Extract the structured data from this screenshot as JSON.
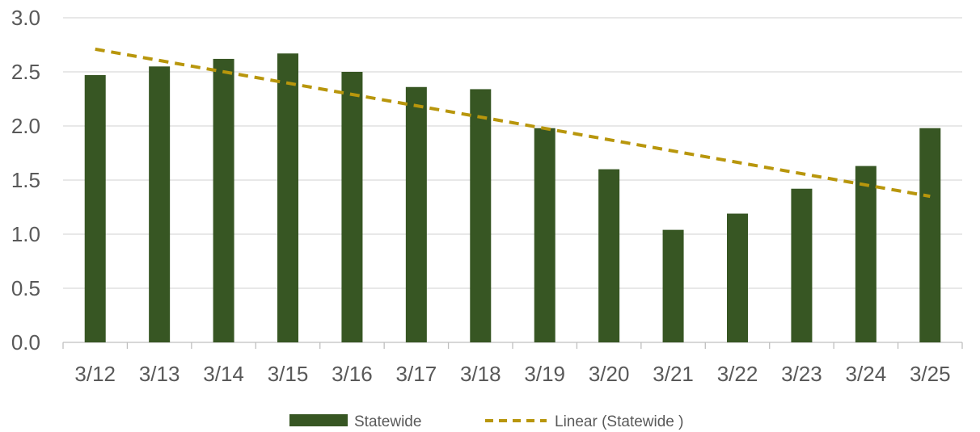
{
  "chart_data": {
    "type": "bar",
    "categories": [
      "3/12",
      "3/13",
      "3/14",
      "3/15",
      "3/16",
      "3/17",
      "3/18",
      "3/19",
      "3/20",
      "3/21",
      "3/22",
      "3/23",
      "3/24",
      "3/25"
    ],
    "series": [
      {
        "name": "Statewide",
        "values": [
          2.47,
          2.55,
          2.62,
          2.67,
          2.5,
          2.36,
          2.34,
          1.98,
          1.6,
          1.04,
          1.19,
          1.42,
          1.63,
          1.98
        ]
      }
    ],
    "trendline": {
      "name": "Linear (Statewide )",
      "type": "linear",
      "start": 2.71,
      "end": 1.35
    },
    "title": "",
    "xlabel": "",
    "ylabel": "",
    "ylim": [
      0,
      3.0
    ],
    "yticks": [
      "0.0",
      "0.5",
      "1.0",
      "1.5",
      "2.0",
      "2.5",
      "3.0"
    ],
    "grid": true,
    "legend_position": "bottom",
    "colors": {
      "bar": "#375623",
      "trend": "#B8960C",
      "grid": "#D9D9D9",
      "text": "#595959"
    }
  }
}
